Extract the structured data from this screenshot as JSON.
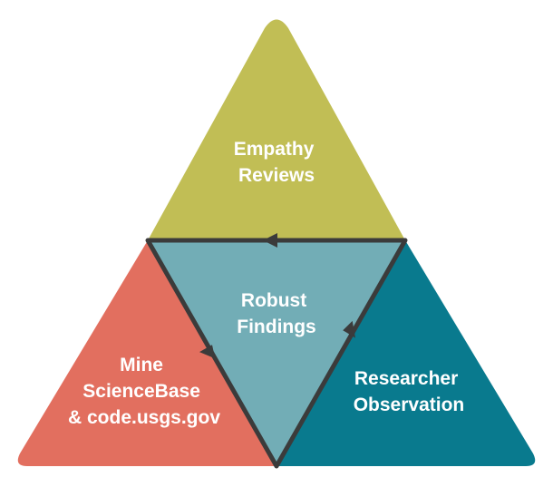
{
  "diagram": {
    "top_section": {
      "lines": [
        "Empathy",
        "Reviews"
      ],
      "color": "#c1be55"
    },
    "left_section": {
      "lines": [
        "Mine",
        "ScienceBase",
        "& code.usgs.gov"
      ],
      "color": "#e26f5f"
    },
    "right_section": {
      "lines": [
        "Researcher",
        "Observation"
      ],
      "color": "#097a8e"
    },
    "center_section": {
      "lines": [
        "Robust",
        "Findings"
      ],
      "color": "#72adb6"
    },
    "cycle_stroke_color": "#3b3b3b"
  }
}
